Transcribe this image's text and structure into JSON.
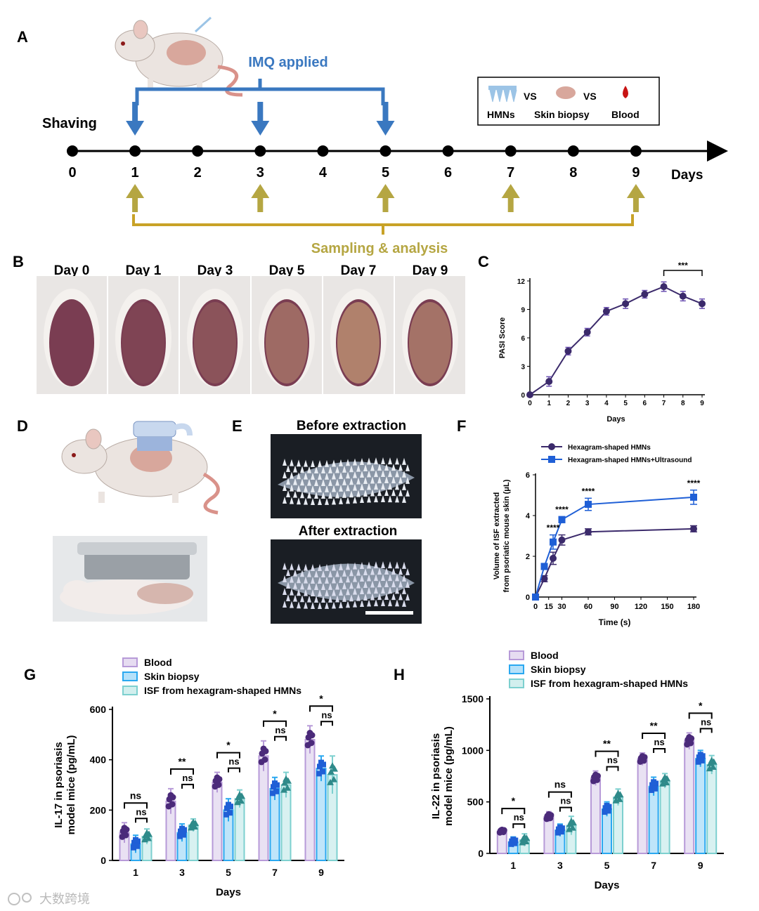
{
  "panelA": {
    "letter": "A",
    "shaving": "Shaving",
    "imq": "IMQ applied",
    "sampling": "Sampling & analysis",
    "days_unit": "Days",
    "timeline": [
      "0",
      "1",
      "2",
      "3",
      "4",
      "5",
      "6",
      "7",
      "8",
      "9"
    ],
    "imq_days": [
      1,
      3,
      5
    ],
    "sample_days": [
      1,
      3,
      5,
      7,
      9
    ],
    "legend": {
      "hmns": "HMNs",
      "vs1": "VS",
      "skin": "Skin biopsy",
      "vs2": "VS",
      "blood": "Blood"
    },
    "colors": {
      "imq": "#3a78c0",
      "sampling": "#b5a642",
      "sampling_line": "#c8a227"
    }
  },
  "panelB": {
    "letter": "B",
    "photos": [
      {
        "label": "Day 0",
        "lesion": 0.0
      },
      {
        "label": "Day 1",
        "lesion": 0.1
      },
      {
        "label": "Day 3",
        "lesion": 0.3
      },
      {
        "label": "Day 5",
        "lesion": 0.6
      },
      {
        "label": "Day 7",
        "lesion": 0.9
      },
      {
        "label": "Day 9",
        "lesion": 0.7
      }
    ]
  },
  "panelD": {
    "letter": "D"
  },
  "panelE": {
    "letter": "E",
    "before": "Before extraction",
    "after": "After extraction"
  },
  "chart_data": [
    {
      "panel": "C",
      "type": "line",
      "x": [
        0,
        1,
        2,
        3,
        4,
        5,
        6,
        7,
        8,
        9
      ],
      "series": [
        {
          "values": [
            0,
            1.4,
            4.6,
            6.6,
            8.8,
            9.6,
            10.6,
            11.4,
            10.4,
            9.6
          ],
          "errors": [
            0.1,
            0.5,
            0.4,
            0.4,
            0.4,
            0.5,
            0.4,
            0.5,
            0.5,
            0.5
          ],
          "color": "#3b2a6b"
        }
      ],
      "xlabel": "Days",
      "ylabel": "PASI Score",
      "xticks": [
        "0",
        "1",
        "2",
        "3",
        "4",
        "5",
        "6",
        "7",
        "8",
        "9"
      ],
      "yticks": [
        "0",
        "3",
        "6",
        "9",
        "12"
      ],
      "ylim": [
        0,
        12
      ],
      "annotation": "***"
    },
    {
      "panel": "F",
      "type": "line",
      "x": [
        0,
        10,
        20,
        30,
        60,
        180
      ],
      "series": [
        {
          "name": "Hexagram-shaped HMNs",
          "values": [
            0,
            0.9,
            1.9,
            2.8,
            3.2,
            3.35
          ],
          "errors": [
            0.05,
            0.15,
            0.3,
            0.25,
            0.15,
            0.15
          ],
          "color": "#3b2a6b",
          "marker": "circle"
        },
        {
          "name": "Hexagram-shaped HMNs+Ultrasound",
          "values": [
            0,
            1.5,
            2.7,
            3.8,
            4.55,
            4.9
          ],
          "errors": [
            0.05,
            0.15,
            0.35,
            0.15,
            0.3,
            0.35
          ],
          "color": "#1f5fd6",
          "marker": "square"
        }
      ],
      "xlabel": "Time (s)",
      "ylabel": [
        "Volume of ISF extracted",
        "from psoriatic mouse skin (μL)"
      ],
      "xticks": [
        "0",
        "15",
        "30",
        "60",
        "90",
        "120",
        "150",
        "180"
      ],
      "yticks": [
        "0",
        "2",
        "4",
        "6"
      ],
      "ylim": [
        0,
        6
      ],
      "annotations": [
        "****",
        "****",
        "****",
        "****"
      ]
    },
    {
      "panel": "G",
      "type": "bar",
      "categories": [
        "1",
        "3",
        "5",
        "7",
        "9"
      ],
      "series": [
        {
          "name": "Blood",
          "values": [
            110,
            235,
            310,
            415,
            480
          ],
          "errors": [
            40,
            50,
            40,
            60,
            55
          ],
          "color": "#b79ad8"
        },
        {
          "name": "Skin biopsy",
          "values": [
            65,
            110,
            200,
            285,
            365
          ],
          "errors": [
            35,
            35,
            45,
            45,
            50
          ],
          "color": "#2aa8f0"
        },
        {
          "name": "ISF from hexagram-shaped HMNs",
          "values": [
            95,
            140,
            245,
            300,
            340
          ],
          "errors": [
            30,
            25,
            35,
            50,
            75
          ],
          "color": "#7dd0cf"
        }
      ],
      "xlabel": "Days",
      "ylabel": [
        "IL-17 in psoriasis",
        "model mice (pg/mL)"
      ],
      "yticks": [
        "0",
        "200",
        "400",
        "600"
      ],
      "ylim": [
        0,
        600
      ],
      "sig_outer": [
        "ns",
        "**",
        "*",
        "*",
        "*"
      ],
      "sig_inner": [
        "ns",
        "ns",
        "ns",
        "ns",
        "ns"
      ]
    },
    {
      "panel": "H",
      "type": "bar",
      "categories": [
        "1",
        "3",
        "5",
        "7",
        "9"
      ],
      "series": [
        {
          "name": "Blood",
          "values": [
            215,
            355,
            730,
            915,
            1090
          ],
          "errors": [
            30,
            50,
            70,
            60,
            80
          ],
          "color": "#b79ad8"
        },
        {
          "name": "Skin biopsy",
          "values": [
            110,
            225,
            430,
            650,
            920
          ],
          "errors": [
            50,
            60,
            70,
            90,
            80
          ],
          "color": "#2aa8f0"
        },
        {
          "name": "ISF from hexagram-shaped HMNs",
          "values": [
            130,
            270,
            545,
            705,
            860
          ],
          "errors": [
            60,
            90,
            80,
            70,
            90
          ],
          "color": "#7dd0cf"
        }
      ],
      "xlabel": "Days",
      "ylabel": [
        "IL-22 in psoriasis",
        "model mice (pg/mL)"
      ],
      "yticks": [
        "0",
        "500",
        "1000",
        "1500"
      ],
      "ylim": [
        0,
        1500
      ],
      "sig_outer": [
        "*",
        "ns",
        "**",
        "**",
        "*"
      ],
      "sig_inner": [
        "ns",
        "ns",
        "ns",
        "ns",
        "ns"
      ]
    }
  ],
  "watermark": "大数跨境"
}
